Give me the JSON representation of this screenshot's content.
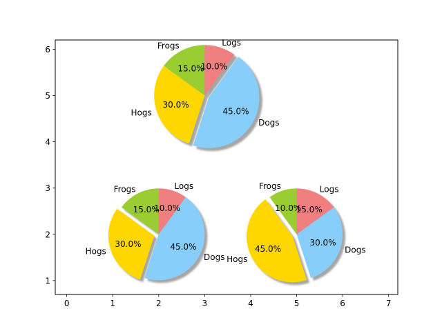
{
  "chart_data": {
    "type": "pie",
    "xlim": [
      -0.25,
      7.2
    ],
    "ylim": [
      0.7,
      6.2
    ],
    "xticks": [
      0,
      1,
      2,
      3,
      4,
      5,
      6,
      7
    ],
    "yticks": [
      1,
      2,
      3,
      4,
      5,
      6
    ],
    "slice_labels": [
      "Frogs",
      "Hogs",
      "Dogs",
      "Logs"
    ],
    "colors": [
      "#9acd32",
      "#ffd700",
      "#87cefa",
      "#f08080"
    ],
    "start_angle": 90,
    "percent_format": "1 decimal with %",
    "shadow": true,
    "pies": [
      {
        "center": [
          3,
          5
        ],
        "radius": 1.1,
        "fracs": [
          15,
          30,
          45,
          10
        ],
        "explode": [
          0,
          0,
          0.1,
          0
        ]
      },
      {
        "center": [
          2,
          2
        ],
        "radius": 1.0,
        "fracs": [
          15,
          30,
          45,
          10
        ],
        "explode": [
          0,
          0.1,
          0,
          0
        ]
      },
      {
        "center": [
          5,
          2
        ],
        "radius": 1.0,
        "fracs": [
          10,
          45,
          30,
          15
        ],
        "explode": [
          0,
          0.1,
          0,
          0
        ]
      }
    ]
  }
}
